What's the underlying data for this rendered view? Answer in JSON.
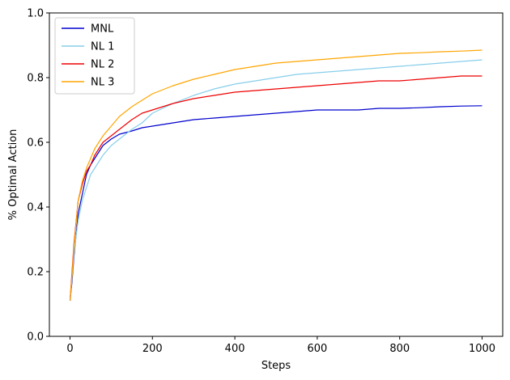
{
  "chart_data": {
    "type": "line",
    "xlabel": "Steps",
    "ylabel": "% Optimal Action",
    "xlim": [
      -50,
      1050
    ],
    "ylim": [
      0.0,
      1.0
    ],
    "xticks": [
      0,
      200,
      400,
      600,
      800,
      1000
    ],
    "yticks": [
      0.0,
      0.2,
      0.4,
      0.6,
      0.8,
      1.0
    ],
    "xtick_labels": [
      "0",
      "200",
      "400",
      "600",
      "800",
      "1000"
    ],
    "ytick_labels": [
      "0.0",
      "0.2",
      "0.4",
      "0.6",
      "0.8",
      "1.0"
    ],
    "grid": false,
    "legend_position": "top-left",
    "series": [
      {
        "name": "MNL",
        "color": "#0000cd",
        "x": [
          0,
          5,
          10,
          20,
          30,
          40,
          50,
          60,
          80,
          100,
          120,
          150,
          175,
          200,
          250,
          300,
          350,
          400,
          450,
          500,
          550,
          600,
          650,
          700,
          750,
          800,
          850,
          900,
          950,
          1000
        ],
        "y": [
          0.11,
          0.17,
          0.25,
          0.38,
          0.44,
          0.5,
          0.53,
          0.55,
          0.59,
          0.61,
          0.625,
          0.635,
          0.645,
          0.65,
          0.66,
          0.67,
          0.675,
          0.68,
          0.685,
          0.69,
          0.695,
          0.7,
          0.7,
          0.7,
          0.705,
          0.705,
          0.707,
          0.71,
          0.712,
          0.713
        ]
      },
      {
        "name": "NL 1",
        "color": "#87ceeb",
        "x": [
          0,
          5,
          10,
          20,
          30,
          40,
          50,
          60,
          80,
          100,
          120,
          150,
          175,
          200,
          250,
          300,
          350,
          400,
          450,
          500,
          550,
          600,
          650,
          700,
          750,
          800,
          850,
          900,
          950,
          1000
        ],
        "y": [
          0.11,
          0.18,
          0.26,
          0.36,
          0.42,
          0.46,
          0.5,
          0.52,
          0.56,
          0.59,
          0.61,
          0.64,
          0.66,
          0.69,
          0.72,
          0.745,
          0.765,
          0.78,
          0.79,
          0.8,
          0.81,
          0.815,
          0.82,
          0.825,
          0.83,
          0.835,
          0.84,
          0.845,
          0.85,
          0.855
        ]
      },
      {
        "name": "NL 2",
        "color": "#ee0000",
        "x": [
          0,
          5,
          10,
          20,
          30,
          40,
          50,
          60,
          80,
          100,
          120,
          150,
          175,
          200,
          250,
          300,
          350,
          400,
          450,
          500,
          550,
          600,
          650,
          700,
          750,
          800,
          850,
          900,
          950,
          1000
        ],
        "y": [
          0.11,
          0.2,
          0.29,
          0.42,
          0.47,
          0.51,
          0.53,
          0.56,
          0.6,
          0.62,
          0.64,
          0.67,
          0.69,
          0.7,
          0.72,
          0.735,
          0.745,
          0.755,
          0.76,
          0.765,
          0.77,
          0.775,
          0.78,
          0.785,
          0.79,
          0.79,
          0.795,
          0.8,
          0.805,
          0.805
        ]
      },
      {
        "name": "NL 3",
        "color": "#ffa500",
        "x": [
          0,
          5,
          10,
          20,
          30,
          40,
          50,
          60,
          80,
          100,
          120,
          150,
          175,
          200,
          250,
          300,
          350,
          400,
          450,
          500,
          550,
          600,
          650,
          700,
          750,
          800,
          850,
          900,
          950,
          1000
        ],
        "y": [
          0.11,
          0.19,
          0.28,
          0.42,
          0.48,
          0.52,
          0.55,
          0.58,
          0.62,
          0.65,
          0.68,
          0.71,
          0.73,
          0.75,
          0.775,
          0.795,
          0.81,
          0.825,
          0.835,
          0.845,
          0.85,
          0.855,
          0.86,
          0.865,
          0.87,
          0.875,
          0.877,
          0.88,
          0.882,
          0.885
        ]
      }
    ]
  }
}
